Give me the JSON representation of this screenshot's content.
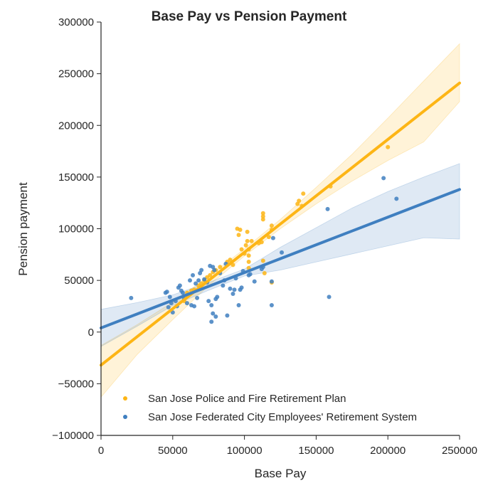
{
  "chart_data": {
    "type": "scatter",
    "title": "Base Pay vs Pension Payment",
    "xlabel": "Base Pay",
    "ylabel": "Pension payment",
    "xlim": [
      0,
      250000
    ],
    "ylim": [
      -100000,
      300000
    ],
    "xticks": [
      "0",
      "50000",
      "100000",
      "150000",
      "200000",
      "250000"
    ],
    "yticks": [
      "−100000",
      "−50000",
      "0",
      "50000",
      "100000",
      "150000",
      "200000",
      "250000",
      "300000"
    ],
    "grid": false,
    "legend_position": "lower-center",
    "series": [
      {
        "name": "San Jose Police and Fire Retirement Plan",
        "color": "#fdb515",
        "fit": {
          "x": [
            0,
            25000,
            50000,
            75000,
            100000,
            125000,
            150000,
            175000,
            200000,
            225000,
            250000
          ],
          "y": [
            -32000,
            -4700,
            22600,
            49900,
            77200,
            104500,
            131800,
            159100,
            186400,
            213700,
            241000
          ],
          "upper": [
            -13000,
            7000,
            29000,
            54000,
            80500,
            109000,
            140000,
            172000,
            207000,
            243000,
            279000
          ],
          "lower": [
            -63000,
            -22000,
            12000,
            45000,
            73500,
            100000,
            124000,
            146000,
            166000,
            184000,
            223000
          ]
        },
        "points": [
          [
            58000,
            30000
          ],
          [
            60000,
            38000
          ],
          [
            63000,
            40000
          ],
          [
            65000,
            41000
          ],
          [
            68000,
            45000
          ],
          [
            70000,
            47000
          ],
          [
            72000,
            50000
          ],
          [
            74000,
            53000
          ],
          [
            76000,
            55000
          ],
          [
            78000,
            58000
          ],
          [
            80000,
            60000
          ],
          [
            83000,
            63000
          ],
          [
            88000,
            68000
          ],
          [
            90000,
            70000
          ],
          [
            92000,
            65000
          ],
          [
            95000,
            100000
          ],
          [
            96000,
            94000
          ],
          [
            97000,
            99000
          ],
          [
            98000,
            80000
          ],
          [
            100000,
            76000
          ],
          [
            101000,
            84000
          ],
          [
            102000,
            88000
          ],
          [
            102000,
            97000
          ],
          [
            103000,
            80000
          ],
          [
            103000,
            74000
          ],
          [
            103000,
            68000
          ],
          [
            103000,
            62000
          ],
          [
            105000,
            88000
          ],
          [
            110000,
            86000
          ],
          [
            112000,
            87000
          ],
          [
            113000,
            109000
          ],
          [
            113000,
            112000
          ],
          [
            113000,
            115000
          ],
          [
            113000,
            69000
          ],
          [
            114000,
            57000
          ],
          [
            117000,
            92000
          ],
          [
            119000,
            99000
          ],
          [
            119000,
            103000
          ],
          [
            119000,
            48000
          ],
          [
            137000,
            124000
          ],
          [
            138000,
            127000
          ],
          [
            140000,
            122000
          ],
          [
            141000,
            134000
          ],
          [
            160000,
            141000
          ],
          [
            200000,
            179000
          ]
        ]
      },
      {
        "name": "San Jose Federated City Employees' Retirement System",
        "color": "#3f7fc0",
        "fit": {
          "x": [
            0,
            25000,
            50000,
            75000,
            100000,
            125000,
            150000,
            175000,
            200000,
            225000,
            250000
          ],
          "y": [
            4000,
            17400,
            30800,
            44200,
            57600,
            71000,
            84400,
            97800,
            111200,
            124600,
            138000
          ],
          "upper": [
            22000,
            28500,
            36000,
            48000,
            61000,
            82000,
            101000,
            120000,
            136000,
            150000,
            163000
          ],
          "lower": [
            -14000,
            5500,
            25600,
            40400,
            54200,
            60000,
            67800,
            75600,
            83400,
            91200,
            90000
          ]
        },
        "points": [
          [
            21000,
            33000
          ],
          [
            45000,
            38000
          ],
          [
            46000,
            39000
          ],
          [
            47000,
            24000
          ],
          [
            48000,
            34000
          ],
          [
            49000,
            28000
          ],
          [
            50000,
            19000
          ],
          [
            52000,
            30000
          ],
          [
            53000,
            25000
          ],
          [
            54000,
            43000
          ],
          [
            55000,
            45000
          ],
          [
            56000,
            40000
          ],
          [
            57000,
            38000
          ],
          [
            58000,
            32000
          ],
          [
            60000,
            28000
          ],
          [
            62000,
            50000
          ],
          [
            63000,
            26000
          ],
          [
            64000,
            55000
          ],
          [
            65000,
            25000
          ],
          [
            66000,
            47000
          ],
          [
            67000,
            33000
          ],
          [
            68000,
            50000
          ],
          [
            69000,
            57000
          ],
          [
            70000,
            60000
          ],
          [
            72000,
            51000
          ],
          [
            74000,
            48000
          ],
          [
            75000,
            30000
          ],
          [
            76000,
            64000
          ],
          [
            77000,
            10000
          ],
          [
            77000,
            26000
          ],
          [
            78000,
            18000
          ],
          [
            78000,
            63000
          ],
          [
            79000,
            60000
          ],
          [
            80000,
            15000
          ],
          [
            80000,
            32000
          ],
          [
            81000,
            34000
          ],
          [
            83000,
            57000
          ],
          [
            85000,
            45000
          ],
          [
            86000,
            50000
          ],
          [
            87000,
            66000
          ],
          [
            88000,
            16000
          ],
          [
            90000,
            42000
          ],
          [
            92000,
            37000
          ],
          [
            93000,
            41000
          ],
          [
            94000,
            52000
          ],
          [
            96000,
            26000
          ],
          [
            97000,
            41000
          ],
          [
            98000,
            43000
          ],
          [
            99000,
            59000
          ],
          [
            103000,
            55000
          ],
          [
            104000,
            56000
          ],
          [
            107000,
            49000
          ],
          [
            112000,
            61000
          ],
          [
            113000,
            63000
          ],
          [
            119000,
            26000
          ],
          [
            119000,
            49000
          ],
          [
            120000,
            91000
          ],
          [
            126000,
            77000
          ],
          [
            158000,
            119000
          ],
          [
            159000,
            34000
          ],
          [
            197000,
            149000
          ],
          [
            206000,
            129000
          ]
        ]
      }
    ]
  }
}
